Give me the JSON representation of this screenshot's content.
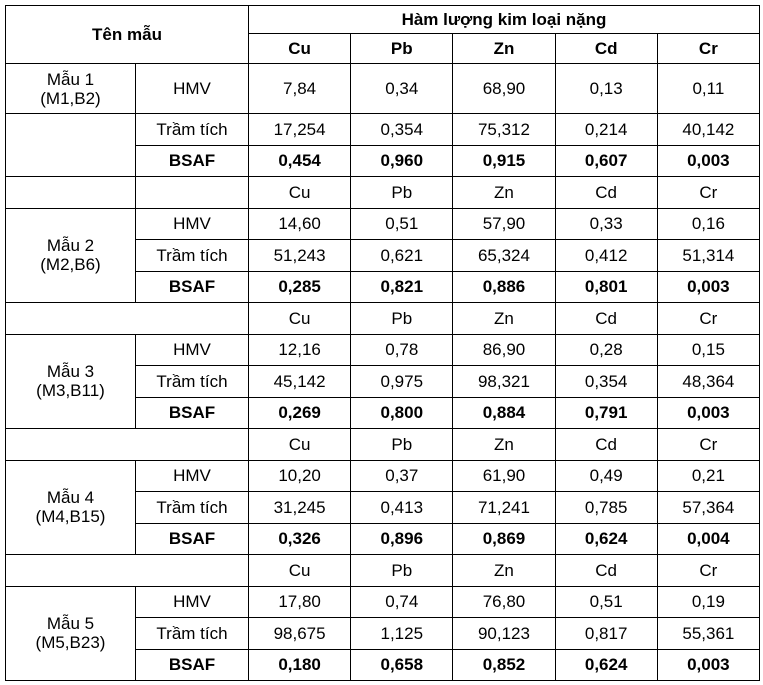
{
  "header": {
    "sample": "Tên mẫu",
    "group": "Hàm lượng kim loại nặng",
    "metals": [
      "Cu",
      "Pb",
      "Zn",
      "Cd",
      "Cr"
    ]
  },
  "samples": [
    {
      "name": "Mẫu 1",
      "code": "(M1,B2)",
      "rows": [
        {
          "label": "HMV",
          "values": [
            "7,84",
            "0,34",
            "68,90",
            "0,13",
            "0,11"
          ]
        },
        {
          "label": "Trầm tích",
          "values": [
            "17,254",
            "0,354",
            "75,312",
            "0,214",
            "40,142"
          ]
        },
        {
          "label": "BSAF",
          "values": [
            "0,454",
            "0,960",
            "0,915",
            "0,607",
            "0,003"
          ]
        }
      ]
    },
    {
      "metals": [
        "Cu",
        "Pb",
        "Zn",
        "Cd",
        "Cr"
      ],
      "name": "Mẫu 2",
      "code": "(M2,B6)",
      "rows": [
        {
          "label": "HMV",
          "values": [
            "14,60",
            "0,51",
            "57,90",
            "0,33",
            "0,16"
          ]
        },
        {
          "label": "Trầm tích",
          "values": [
            "51,243",
            "0,621",
            "65,324",
            "0,412",
            "51,314"
          ]
        },
        {
          "label": "BSAF",
          "values": [
            "0,285",
            "0,821",
            "0,886",
            "0,801",
            "0,003"
          ]
        }
      ]
    },
    {
      "metals": [
        "Cu",
        "Pb",
        "Zn",
        "Cd",
        "Cr"
      ],
      "name": "Mẫu 3",
      "code": "(M3,B11)",
      "rows": [
        {
          "label": "HMV",
          "values": [
            "12,16",
            "0,78",
            "86,90",
            "0,28",
            "0,15"
          ]
        },
        {
          "label": "Trầm tích",
          "values": [
            "45,142",
            "0,975",
            "98,321",
            "0,354",
            "48,364"
          ]
        },
        {
          "label": "BSAF",
          "values": [
            "0,269",
            "0,800",
            "0,884",
            "0,791",
            "0,003"
          ]
        }
      ]
    },
    {
      "metals": [
        "Cu",
        "Pb",
        "Zn",
        "Cd",
        "Cr"
      ],
      "name": "Mẫu 4",
      "code": "(M4,B15)",
      "rows": [
        {
          "label": "HMV",
          "values": [
            "10,20",
            "0,37",
            "61,90",
            "0,49",
            "0,21"
          ]
        },
        {
          "label": "Trầm tích",
          "values": [
            "31,245",
            "0,413",
            "71,241",
            "0,785",
            "57,364"
          ]
        },
        {
          "label": "BSAF",
          "values": [
            "0,326",
            "0,896",
            "0,869",
            "0,624",
            "0,004"
          ]
        }
      ]
    },
    {
      "metals": [
        "Cu",
        "Pb",
        "Zn",
        "Cd",
        "Cr"
      ],
      "name": "Mẫu 5",
      "code": "(M5,B23)",
      "rows": [
        {
          "label": "HMV",
          "values": [
            "17,80",
            "0,74",
            "76,80",
            "0,51",
            "0,19"
          ]
        },
        {
          "label": "Trầm tích",
          "values": [
            "98,675",
            "1,125",
            "90,123",
            "0,817",
            "55,361"
          ]
        },
        {
          "label": "BSAF",
          "values": [
            "0,180",
            "0,658",
            "0,852",
            "0,624",
            "0,003"
          ]
        }
      ]
    }
  ]
}
